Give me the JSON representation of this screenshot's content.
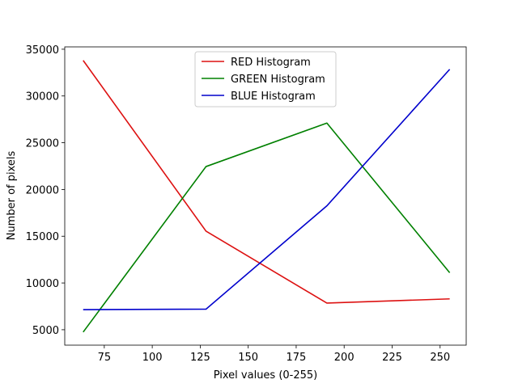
{
  "chart_data": {
    "type": "line",
    "title": "",
    "xlabel": "Pixel values (0-255)",
    "ylabel": "Number of pixels",
    "xlim": [
      54.4,
      263.6
    ],
    "ylim": [
      3350,
      35250
    ],
    "x_ticks": [
      75,
      100,
      125,
      150,
      175,
      200,
      225,
      250
    ],
    "y_ticks": [
      5000,
      10000,
      15000,
      20000,
      25000,
      30000,
      35000
    ],
    "grid": false,
    "legend_position": "upper center",
    "x": [
      64,
      128,
      191,
      255
    ],
    "series": [
      {
        "name": "RED Histogram",
        "color": "#dd1111",
        "values": [
          33800,
          15550,
          7850,
          8300
        ]
      },
      {
        "name": "GREEN Histogram",
        "color": "#008000",
        "values": [
          4750,
          22450,
          27100,
          11100
        ]
      },
      {
        "name": "BLUE Histogram",
        "color": "#0000cc",
        "values": [
          7150,
          7200,
          18250,
          32850
        ]
      }
    ]
  }
}
